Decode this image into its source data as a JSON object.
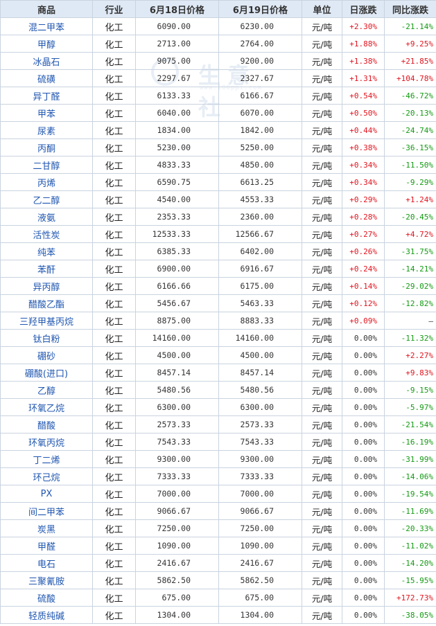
{
  "watermark": {
    "text": "生意社",
    "url": "www.100ppi.com"
  },
  "headers": [
    "商品",
    "行业",
    "6月18日价格",
    "6月19日价格",
    "单位",
    "日涨跌",
    "同比涨跌"
  ],
  "rows": [
    {
      "name": "混二甲苯",
      "industry": "化工",
      "p1": "6090.00",
      "p2": "6230.00",
      "unit": "元/吨",
      "day": "+2.30%",
      "yoy": "-21.14%"
    },
    {
      "name": "甲醇",
      "industry": "化工",
      "p1": "2713.00",
      "p2": "2764.00",
      "unit": "元/吨",
      "day": "+1.88%",
      "yoy": "+9.25%"
    },
    {
      "name": "冰晶石",
      "industry": "化工",
      "p1": "9075.00",
      "p2": "9200.00",
      "unit": "元/吨",
      "day": "+1.38%",
      "yoy": "+21.85%"
    },
    {
      "name": "硫磺",
      "industry": "化工",
      "p1": "2297.67",
      "p2": "2327.67",
      "unit": "元/吨",
      "day": "+1.31%",
      "yoy": "+104.78%"
    },
    {
      "name": "异丁醛",
      "industry": "化工",
      "p1": "6133.33",
      "p2": "6166.67",
      "unit": "元/吨",
      "day": "+0.54%",
      "yoy": "-46.72%"
    },
    {
      "name": "甲苯",
      "industry": "化工",
      "p1": "6040.00",
      "p2": "6070.00",
      "unit": "元/吨",
      "day": "+0.50%",
      "yoy": "-20.13%"
    },
    {
      "name": "尿素",
      "industry": "化工",
      "p1": "1834.00",
      "p2": "1842.00",
      "unit": "元/吨",
      "day": "+0.44%",
      "yoy": "-24.74%"
    },
    {
      "name": "丙酮",
      "industry": "化工",
      "p1": "5230.00",
      "p2": "5250.00",
      "unit": "元/吨",
      "day": "+0.38%",
      "yoy": "-36.15%"
    },
    {
      "name": "二甘醇",
      "industry": "化工",
      "p1": "4833.33",
      "p2": "4850.00",
      "unit": "元/吨",
      "day": "+0.34%",
      "yoy": "-11.50%"
    },
    {
      "name": "丙烯",
      "industry": "化工",
      "p1": "6590.75",
      "p2": "6613.25",
      "unit": "元/吨",
      "day": "+0.34%",
      "yoy": "-9.29%"
    },
    {
      "name": "乙二醇",
      "industry": "化工",
      "p1": "4540.00",
      "p2": "4553.33",
      "unit": "元/吨",
      "day": "+0.29%",
      "yoy": "+1.24%"
    },
    {
      "name": "液氨",
      "industry": "化工",
      "p1": "2353.33",
      "p2": "2360.00",
      "unit": "元/吨",
      "day": "+0.28%",
      "yoy": "-20.45%"
    },
    {
      "name": "活性炭",
      "industry": "化工",
      "p1": "12533.33",
      "p2": "12566.67",
      "unit": "元/吨",
      "day": "+0.27%",
      "yoy": "+4.72%"
    },
    {
      "name": "纯苯",
      "industry": "化工",
      "p1": "6385.33",
      "p2": "6402.00",
      "unit": "元/吨",
      "day": "+0.26%",
      "yoy": "-31.75%"
    },
    {
      "name": "苯酐",
      "industry": "化工",
      "p1": "6900.00",
      "p2": "6916.67",
      "unit": "元/吨",
      "day": "+0.24%",
      "yoy": "-14.21%"
    },
    {
      "name": "异丙醇",
      "industry": "化工",
      "p1": "6166.66",
      "p2": "6175.00",
      "unit": "元/吨",
      "day": "+0.14%",
      "yoy": "-29.02%"
    },
    {
      "name": "醋酸乙酯",
      "industry": "化工",
      "p1": "5456.67",
      "p2": "5463.33",
      "unit": "元/吨",
      "day": "+0.12%",
      "yoy": "-12.82%"
    },
    {
      "name": "三羟甲基丙烷",
      "industry": "化工",
      "p1": "8875.00",
      "p2": "8883.33",
      "unit": "元/吨",
      "day": "+0.09%",
      "yoy": "—"
    },
    {
      "name": "钛白粉",
      "industry": "化工",
      "p1": "14160.00",
      "p2": "14160.00",
      "unit": "元/吨",
      "day": "0.00%",
      "yoy": "-11.32%"
    },
    {
      "name": "硼砂",
      "industry": "化工",
      "p1": "4500.00",
      "p2": "4500.00",
      "unit": "元/吨",
      "day": "0.00%",
      "yoy": "+2.27%"
    },
    {
      "name": "硼酸(进口)",
      "industry": "化工",
      "p1": "8457.14",
      "p2": "8457.14",
      "unit": "元/吨",
      "day": "0.00%",
      "yoy": "+9.83%"
    },
    {
      "name": "乙醇",
      "industry": "化工",
      "p1": "5480.56",
      "p2": "5480.56",
      "unit": "元/吨",
      "day": "0.00%",
      "yoy": "-9.15%"
    },
    {
      "name": "环氧乙烷",
      "industry": "化工",
      "p1": "6300.00",
      "p2": "6300.00",
      "unit": "元/吨",
      "day": "0.00%",
      "yoy": "-5.97%"
    },
    {
      "name": "醋酸",
      "industry": "化工",
      "p1": "2573.33",
      "p2": "2573.33",
      "unit": "元/吨",
      "day": "0.00%",
      "yoy": "-21.54%"
    },
    {
      "name": "环氧丙烷",
      "industry": "化工",
      "p1": "7543.33",
      "p2": "7543.33",
      "unit": "元/吨",
      "day": "0.00%",
      "yoy": "-16.19%"
    },
    {
      "name": "丁二烯",
      "industry": "化工",
      "p1": "9300.00",
      "p2": "9300.00",
      "unit": "元/吨",
      "day": "0.00%",
      "yoy": "-31.99%"
    },
    {
      "name": "环己烷",
      "industry": "化工",
      "p1": "7333.33",
      "p2": "7333.33",
      "unit": "元/吨",
      "day": "0.00%",
      "yoy": "-14.06%"
    },
    {
      "name": "PX",
      "industry": "化工",
      "p1": "7000.00",
      "p2": "7000.00",
      "unit": "元/吨",
      "day": "0.00%",
      "yoy": "-19.54%"
    },
    {
      "name": "间二甲苯",
      "industry": "化工",
      "p1": "9066.67",
      "p2": "9066.67",
      "unit": "元/吨",
      "day": "0.00%",
      "yoy": "-11.69%"
    },
    {
      "name": "炭黑",
      "industry": "化工",
      "p1": "7250.00",
      "p2": "7250.00",
      "unit": "元/吨",
      "day": "0.00%",
      "yoy": "-20.33%"
    },
    {
      "name": "甲醛",
      "industry": "化工",
      "p1": "1090.00",
      "p2": "1090.00",
      "unit": "元/吨",
      "day": "0.00%",
      "yoy": "-11.02%"
    },
    {
      "name": "电石",
      "industry": "化工",
      "p1": "2416.67",
      "p2": "2416.67",
      "unit": "元/吨",
      "day": "0.00%",
      "yoy": "-14.20%"
    },
    {
      "name": "三聚氰胺",
      "industry": "化工",
      "p1": "5862.50",
      "p2": "5862.50",
      "unit": "元/吨",
      "day": "0.00%",
      "yoy": "-15.95%"
    },
    {
      "name": "硫酸",
      "industry": "化工",
      "p1": "675.00",
      "p2": "675.00",
      "unit": "元/吨",
      "day": "0.00%",
      "yoy": "+172.73%"
    },
    {
      "name": "轻质纯碱",
      "industry": "化工",
      "p1": "1304.00",
      "p2": "1304.00",
      "unit": "元/吨",
      "day": "0.00%",
      "yoy": "-38.05%"
    }
  ]
}
